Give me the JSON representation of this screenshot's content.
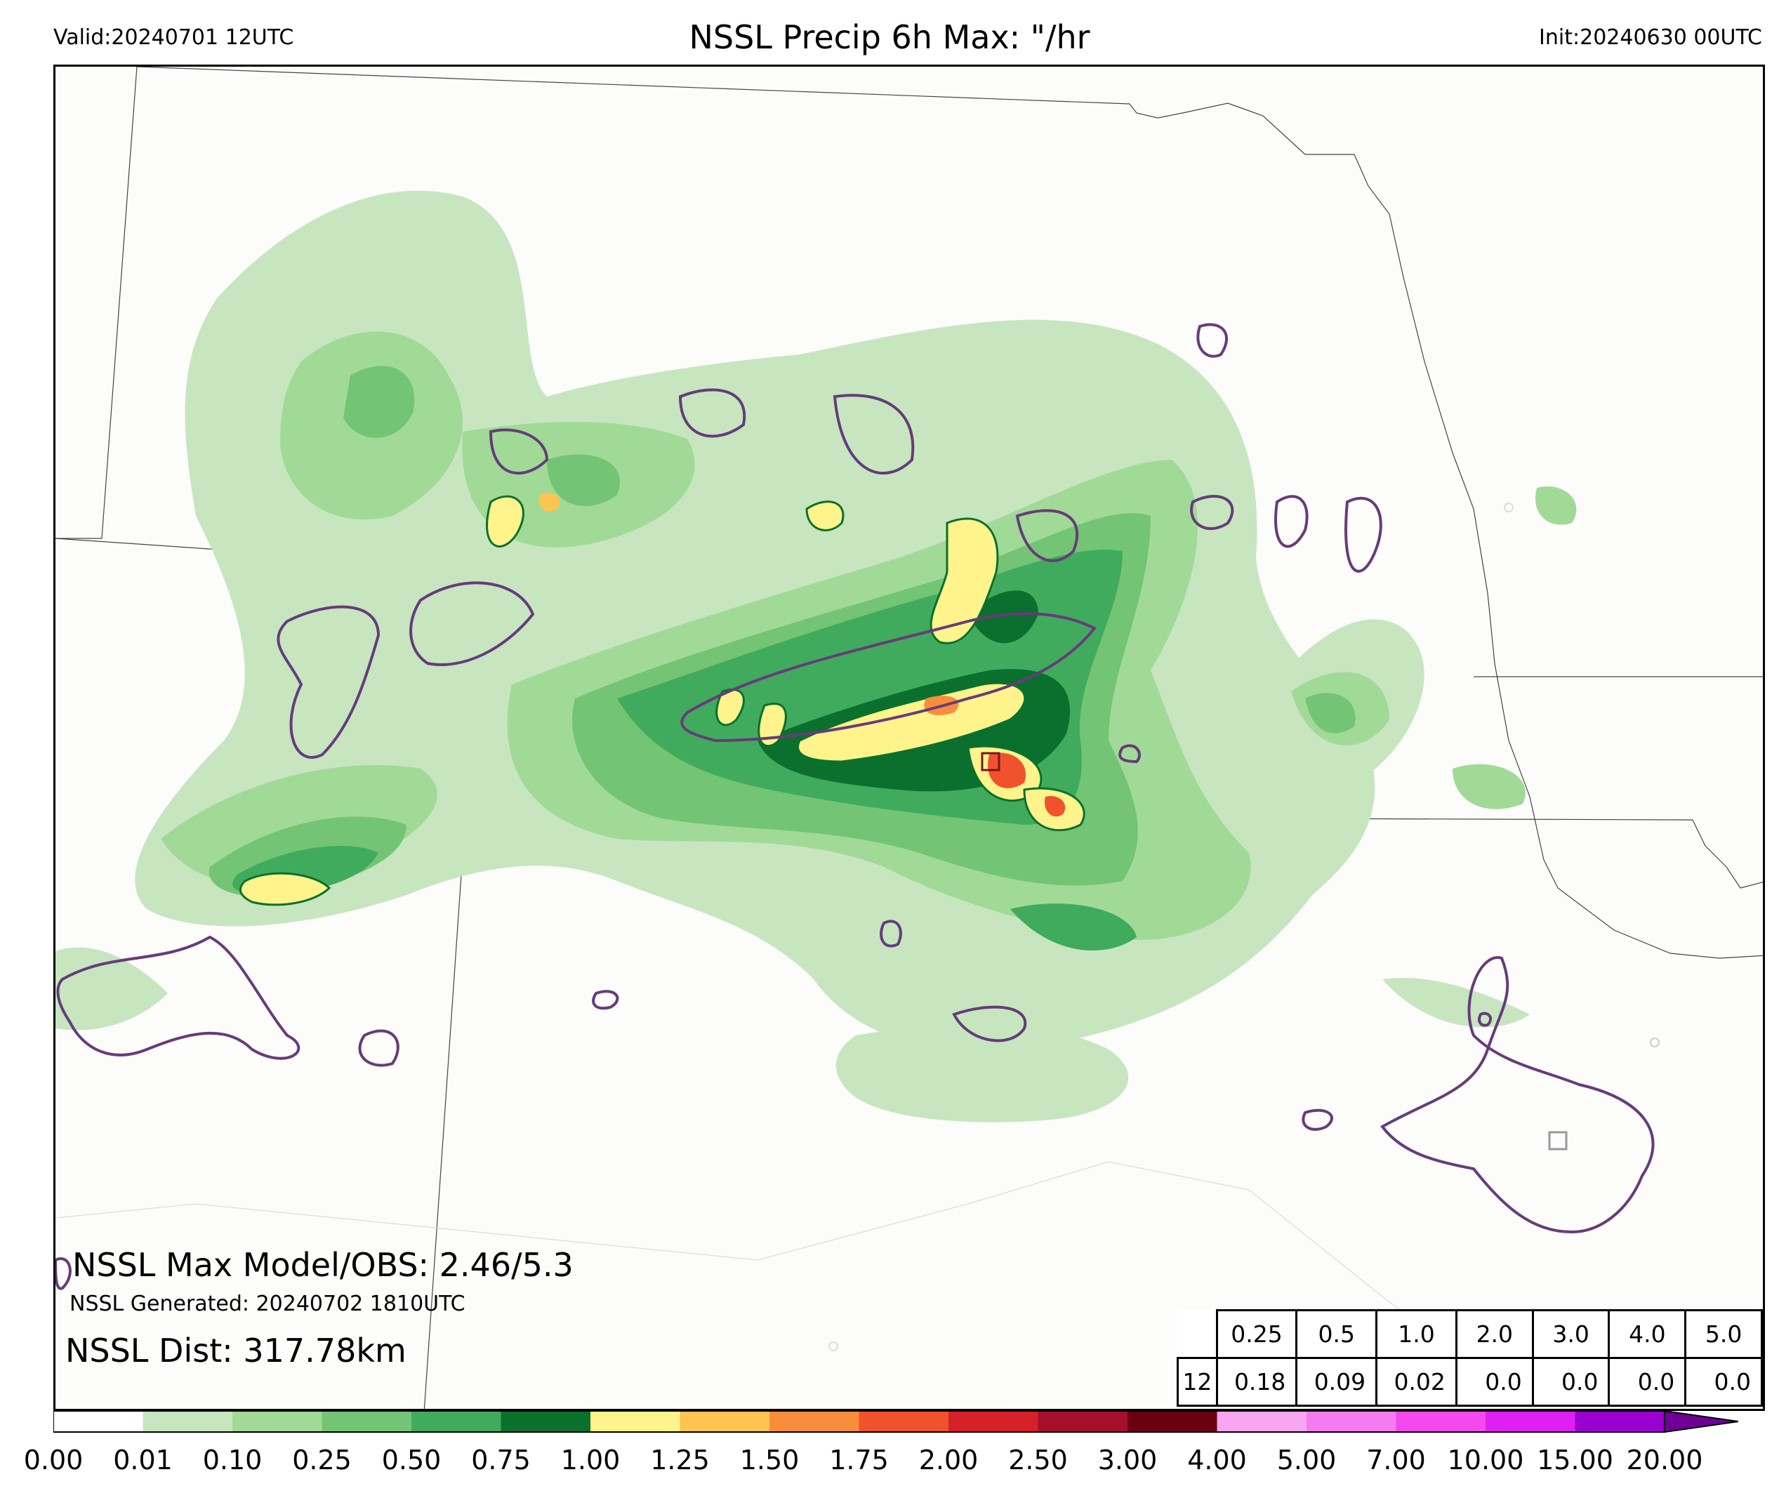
{
  "header": {
    "valid": "Valid:20240701 12UTC",
    "title": "NSSL Precip 6h Max: \"/hr",
    "init": "Init:20240630 00UTC"
  },
  "annotations": {
    "max_model_obs": "NSSL Max Model/OBS: 2.46/5.3",
    "generated": "NSSL Generated: 20240702 1810UTC",
    "dist": "NSSL Dist: 317.78km"
  },
  "stats_table": {
    "thresholds": [
      "0.25",
      "0.5",
      "1.0",
      "2.0",
      "3.0",
      "4.0",
      "5.0"
    ],
    "row_label": "12",
    "values": [
      "0.18",
      "0.09",
      "0.02",
      "0.0",
      "0.0",
      "0.0",
      "0.0"
    ]
  },
  "colorbar": {
    "ticks": [
      "0.00",
      "0.01",
      "0.10",
      "0.25",
      "0.50",
      "0.75",
      "1.00",
      "1.25",
      "1.50",
      "1.75",
      "2.00",
      "2.50",
      "3.00",
      "4.00",
      "5.00",
      "7.00",
      "10.00",
      "15.00",
      "20.00"
    ],
    "colors": [
      "#ffffff",
      "#c7e6c0",
      "#a1da97",
      "#74c476",
      "#41ab5d",
      "#0b702d",
      "#fff48c",
      "#fdc452",
      "#f98d3c",
      "#f0522d",
      "#d62128",
      "#a50f2b",
      "#6b0010",
      "#f8a6f2",
      "#f57cf0",
      "#f24aef",
      "#e21ff2",
      "#9a00d0"
    ],
    "extend_color": "#6e0096"
  },
  "legend_colors": {
    "precip_levels": [
      "#c7e6c0",
      "#a1da97",
      "#74c476",
      "#41ab5d",
      "#0b702d",
      "#fff48c",
      "#fdc452",
      "#f98d3c",
      "#f0522d"
    ],
    "obs_contour": "#663c7a",
    "max_model_marker": "#7a1526",
    "max_obs_marker": "#999999"
  }
}
